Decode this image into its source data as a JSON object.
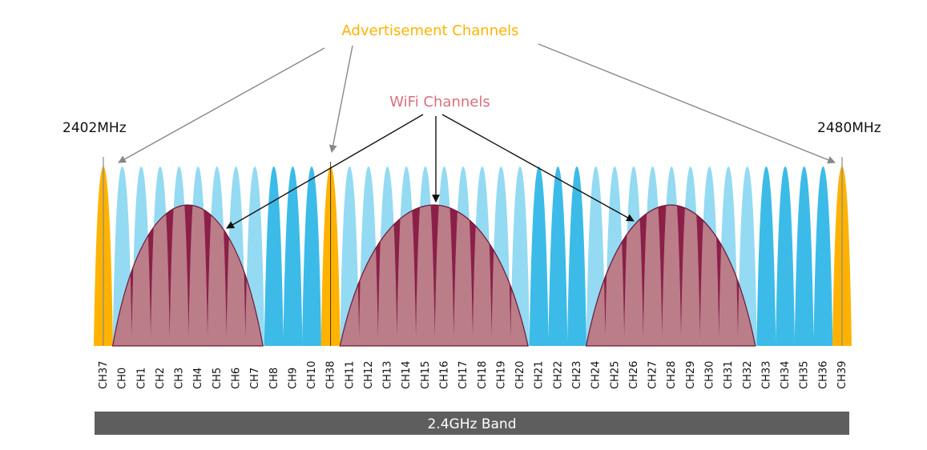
{
  "labels": {
    "advertisement": "Advertisement Channels",
    "wifi": "WiFi Channels",
    "freq_low": "2402MHz",
    "freq_high": "2480MHz",
    "band": "2.4GHz Band"
  },
  "colors": {
    "advertisement_channel": "#ffb300",
    "data_channel": "#3cbbe8",
    "wifi_channel": "#8c1f47",
    "wifi_overlap": "#d98080",
    "advertisement_text": "#ffb300",
    "wifi_text": "#d9707e",
    "band_bar": "#5e5e5e",
    "marker_line": "#888888"
  },
  "channels": [
    {
      "label": "CH37",
      "type": "advertisement"
    },
    {
      "label": "CH0",
      "type": "data"
    },
    {
      "label": "CH1",
      "type": "data"
    },
    {
      "label": "CH2",
      "type": "data"
    },
    {
      "label": "CH3",
      "type": "data"
    },
    {
      "label": "CH4",
      "type": "data"
    },
    {
      "label": "CH5",
      "type": "data"
    },
    {
      "label": "CH6",
      "type": "data"
    },
    {
      "label": "CH7",
      "type": "data"
    },
    {
      "label": "CH8",
      "type": "data"
    },
    {
      "label": "CH9",
      "type": "data"
    },
    {
      "label": "CH10",
      "type": "data"
    },
    {
      "label": "CH38",
      "type": "advertisement"
    },
    {
      "label": "CH11",
      "type": "data"
    },
    {
      "label": "CH12",
      "type": "data"
    },
    {
      "label": "CH13",
      "type": "data"
    },
    {
      "label": "CH14",
      "type": "data"
    },
    {
      "label": "CH15",
      "type": "data"
    },
    {
      "label": "CH16",
      "type": "data"
    },
    {
      "label": "CH17",
      "type": "data"
    },
    {
      "label": "CH18",
      "type": "data"
    },
    {
      "label": "CH19",
      "type": "data"
    },
    {
      "label": "CH20",
      "type": "data"
    },
    {
      "label": "CH21",
      "type": "data"
    },
    {
      "label": "CH22",
      "type": "data"
    },
    {
      "label": "CH23",
      "type": "data"
    },
    {
      "label": "CH24",
      "type": "data"
    },
    {
      "label": "CH25",
      "type": "data"
    },
    {
      "label": "CH26",
      "type": "data"
    },
    {
      "label": "CH27",
      "type": "data"
    },
    {
      "label": "CH28",
      "type": "data"
    },
    {
      "label": "CH29",
      "type": "data"
    },
    {
      "label": "CH30",
      "type": "data"
    },
    {
      "label": "CH31",
      "type": "data"
    },
    {
      "label": "CH32",
      "type": "data"
    },
    {
      "label": "CH33",
      "type": "data"
    },
    {
      "label": "CH34",
      "type": "data"
    },
    {
      "label": "CH35",
      "type": "data"
    },
    {
      "label": "CH36",
      "type": "data"
    },
    {
      "label": "CH39",
      "type": "advertisement"
    }
  ],
  "wifi_channels": [
    {
      "from": "CH0",
      "to": "CH7"
    },
    {
      "from": "CH11",
      "to": "CH20"
    },
    {
      "from": "CH24",
      "to": "CH32"
    }
  ]
}
